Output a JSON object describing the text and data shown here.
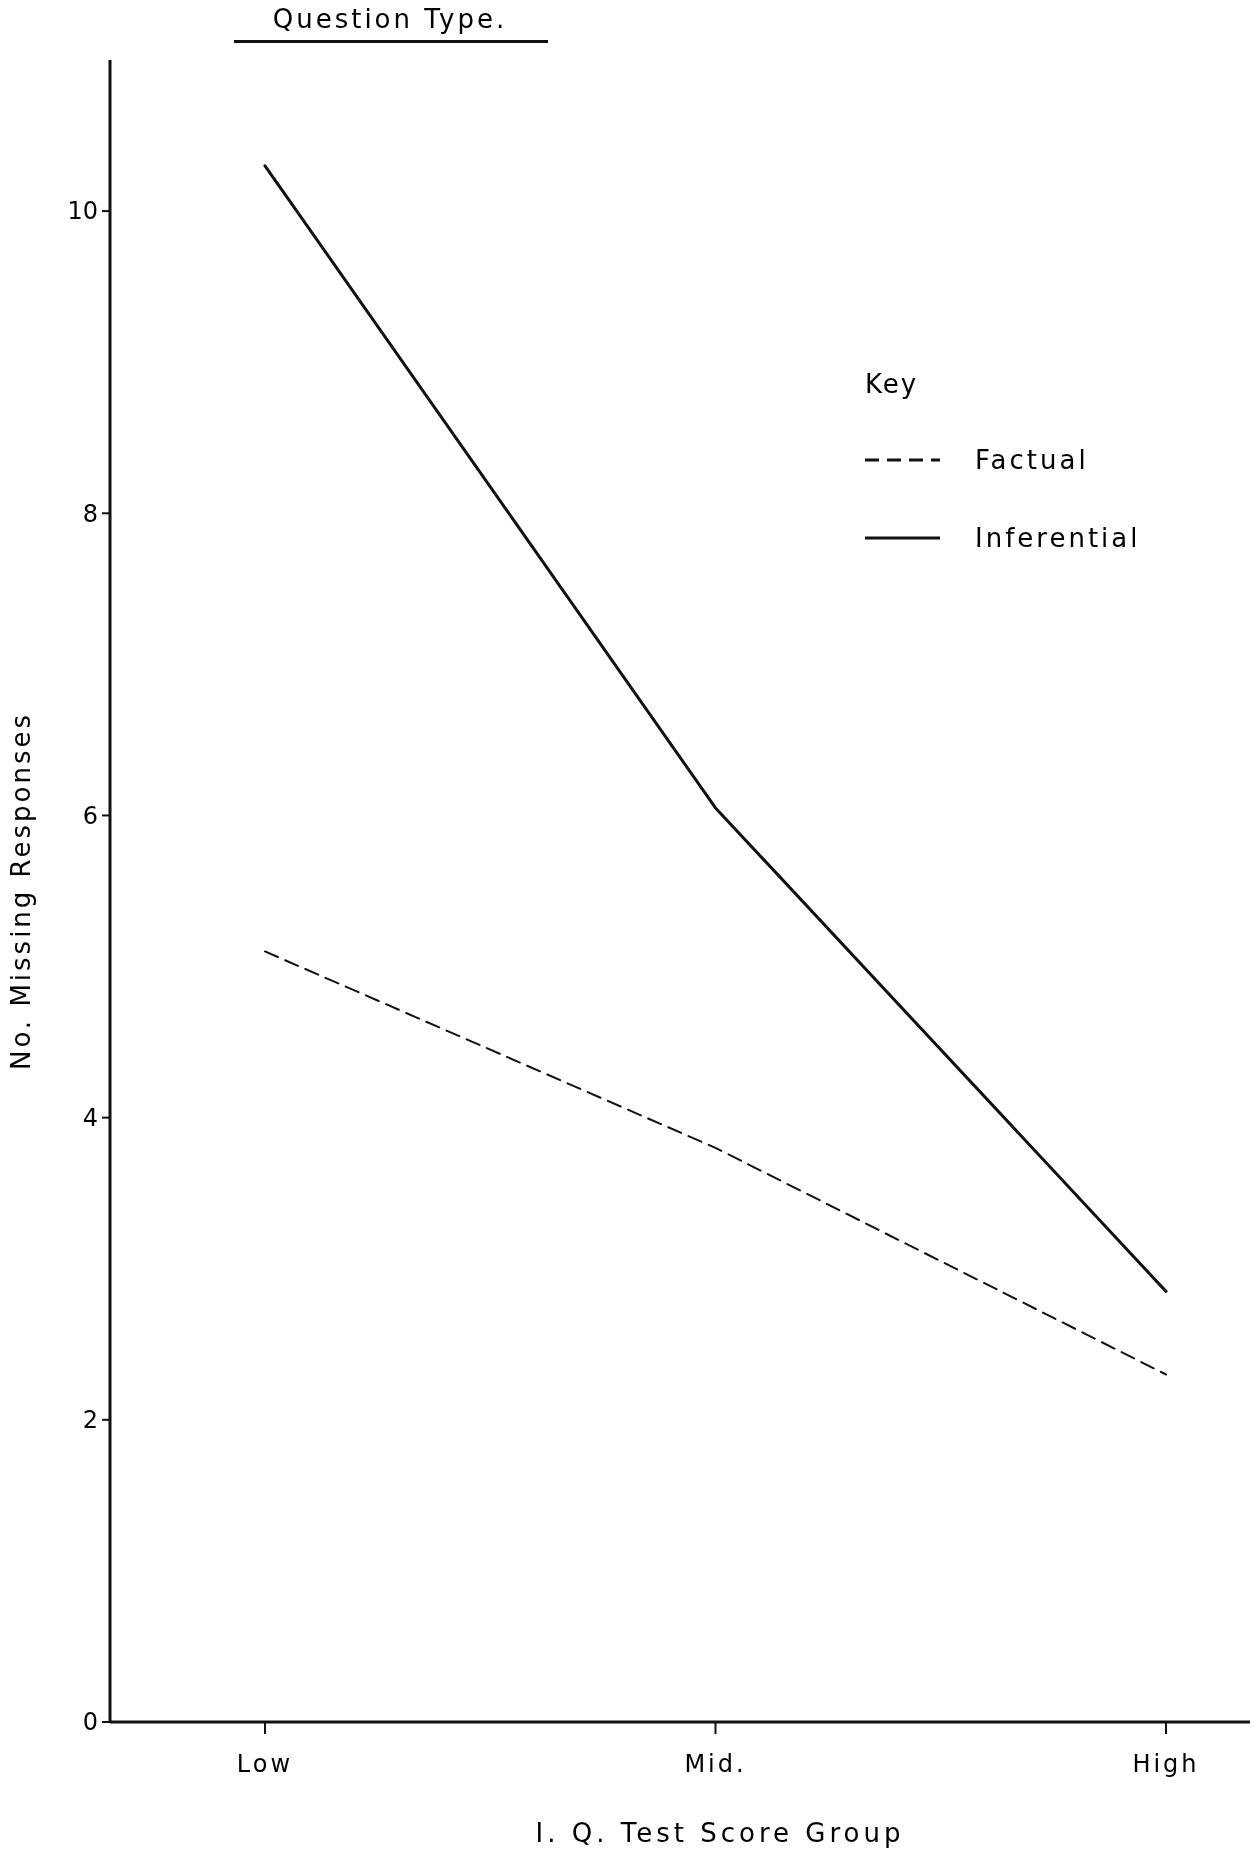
{
  "chart_data": {
    "type": "line",
    "title": "Question Type.",
    "xlabel": "I. Q. Test Score Group",
    "ylabel": "No.  Missing  Responses",
    "legend_title": "Key",
    "categories": [
      "Low",
      "Mid.",
      "High"
    ],
    "series": [
      {
        "name": "Factual",
        "color": "#111111",
        "line_style": "dashed",
        "values": [
          5.1,
          3.8,
          2.3
        ]
      },
      {
        "name": "Inferential",
        "color": "#111111",
        "line_style": "solid",
        "values": [
          10.3,
          6.05,
          2.85
        ]
      }
    ],
    "ylim": [
      0,
      11
    ],
    "yticks": [
      0,
      2,
      4,
      6,
      8,
      10
    ],
    "legend": "right",
    "grid": false,
    "marker": "none"
  }
}
